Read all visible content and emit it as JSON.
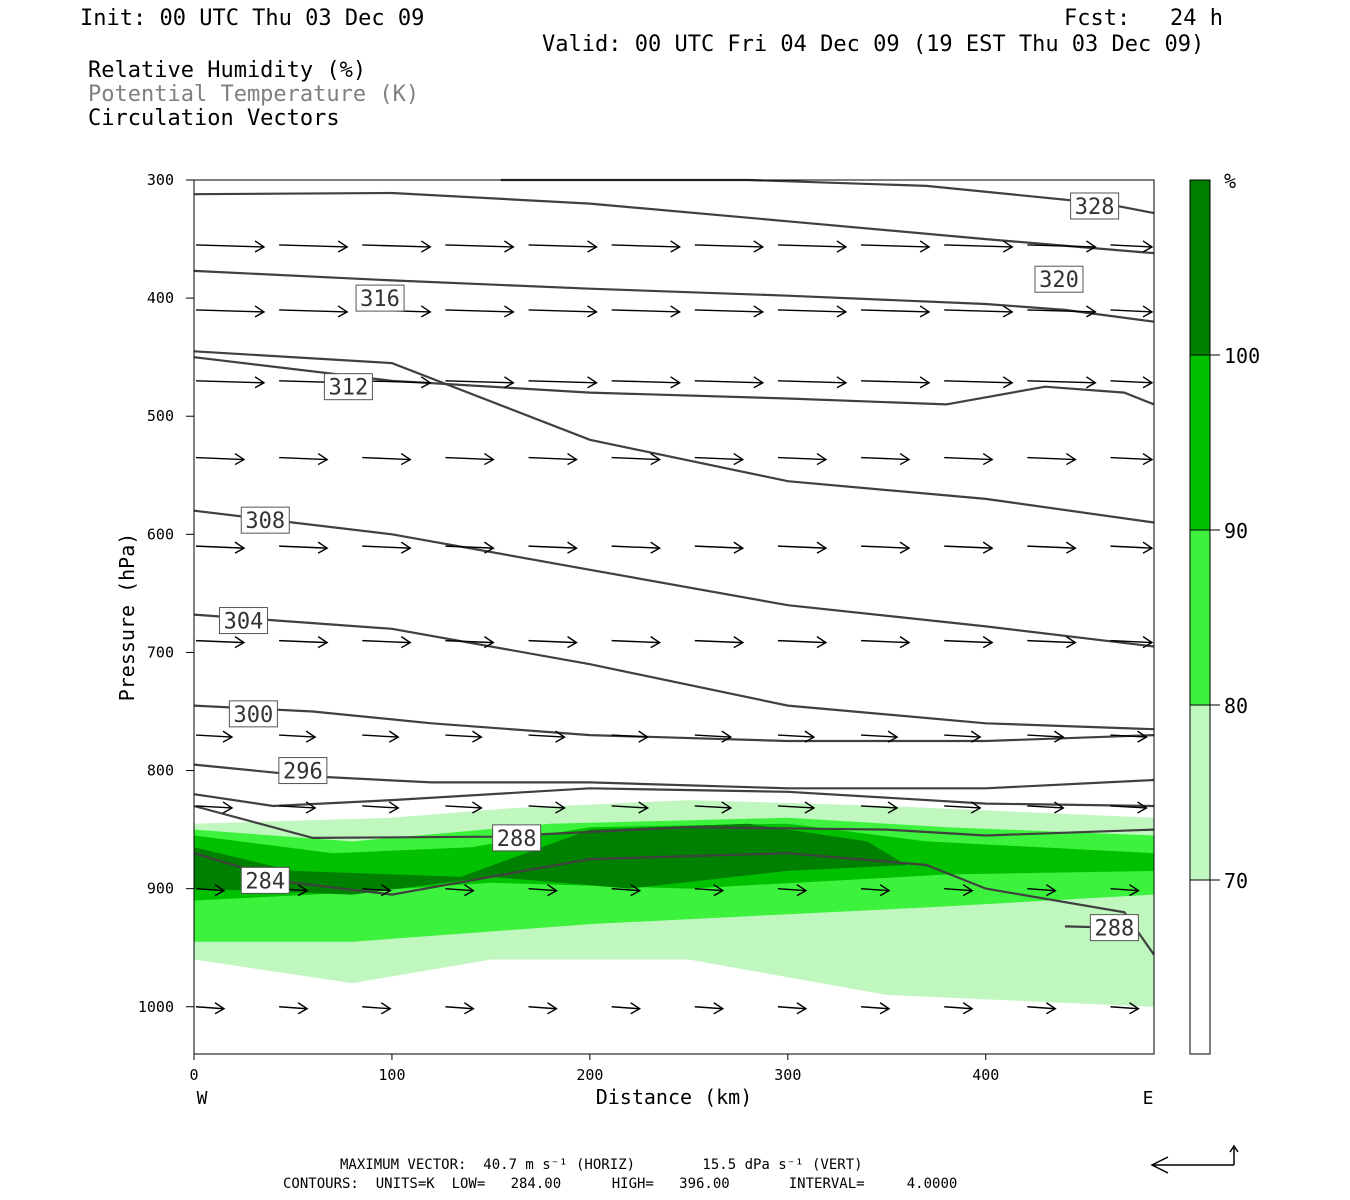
{
  "header": {
    "init": "Init: 00 UTC Thu 03 Dec 09",
    "fcst": "Fcst:   24 h",
    "valid": "Valid: 00 UTC Fri 04 Dec 09 (19 EST Thu 03 Dec 09)",
    "fields": [
      "Relative Humidity (%)",
      "Potential Temperature (K)",
      "Circulation Vectors"
    ]
  },
  "colors": {
    "rh_70_80": "#bff7bf",
    "rh_80_90": "#3cf23c",
    "rh_90_100": "#00c000",
    "rh_100": "#008000",
    "theta_line": "#404040",
    "field_gray": "#808080"
  },
  "chart_data": {
    "type": "cross-section",
    "xlabel": "Distance (km)",
    "ylabel": "Pressure (hPa)",
    "xlim": [
      0,
      485
    ],
    "ylim": [
      1040,
      300
    ],
    "x_ticks": [
      "0",
      "100",
      "200",
      "300",
      "400"
    ],
    "y_ticks": [
      "300",
      "400",
      "500",
      "600",
      "700",
      "800",
      "900",
      "1000"
    ],
    "west_label": "W",
    "east_label": "E",
    "colorbar": {
      "unit": "%",
      "levels": [
        "100",
        "90",
        "80",
        "70"
      ]
    },
    "theta_contours": [
      {
        "value": 328,
        "label": "328",
        "label_at": [
          455,
          322
        ],
        "points": [
          [
            155,
            300
          ],
          [
            280,
            300
          ],
          [
            370,
            305
          ],
          [
            460,
            320
          ],
          [
            485,
            328
          ]
        ]
      },
      {
        "value": 324,
        "label": "",
        "points": [
          [
            0,
            312
          ],
          [
            100,
            311
          ],
          [
            200,
            320
          ],
          [
            300,
            335
          ],
          [
            400,
            350
          ],
          [
            485,
            362
          ]
        ]
      },
      {
        "value": 320,
        "label": "320",
        "label_at": [
          437,
          384
        ],
        "points": [
          [
            0,
            377
          ],
          [
            100,
            385
          ],
          [
            200,
            392
          ],
          [
            300,
            398
          ],
          [
            400,
            405
          ],
          [
            440,
            410
          ],
          [
            485,
            420
          ]
        ]
      },
      {
        "value": 316,
        "label": "316",
        "label_at": [
          94,
          400
        ],
        "points": [
          [
            0,
            450
          ],
          [
            100,
            470
          ],
          [
            200,
            480
          ],
          [
            300,
            485
          ],
          [
            380,
            490
          ],
          [
            430,
            475
          ],
          [
            470,
            480
          ],
          [
            485,
            490
          ]
        ]
      },
      {
        "value": 312,
        "label": "312",
        "label_at": [
          78,
          475
        ],
        "points": [
          [
            0,
            445
          ],
          [
            100,
            455
          ],
          [
            200,
            520
          ],
          [
            300,
            555
          ],
          [
            400,
            570
          ],
          [
            485,
            590
          ]
        ]
      },
      {
        "value": 308,
        "label": "308",
        "label_at": [
          36,
          588
        ],
        "points": [
          [
            0,
            580
          ],
          [
            100,
            600
          ],
          [
            200,
            630
          ],
          [
            300,
            660
          ],
          [
            400,
            678
          ],
          [
            485,
            695
          ]
        ]
      },
      {
        "value": 304,
        "label": "304",
        "label_at": [
          25,
          673
        ],
        "points": [
          [
            0,
            668
          ],
          [
            100,
            680
          ],
          [
            200,
            710
          ],
          [
            300,
            745
          ],
          [
            400,
            760
          ],
          [
            485,
            765
          ]
        ]
      },
      {
        "value": 300,
        "label": "300",
        "label_at": [
          30,
          752
        ],
        "points": [
          [
            0,
            745
          ],
          [
            60,
            750
          ],
          [
            120,
            760
          ],
          [
            200,
            770
          ],
          [
            300,
            775
          ],
          [
            400,
            775
          ],
          [
            485,
            770
          ]
        ]
      },
      {
        "value": 296,
        "label": "296",
        "label_at": [
          55,
          800
        ],
        "points": [
          [
            0,
            795
          ],
          [
            60,
            805
          ],
          [
            120,
            810
          ],
          [
            200,
            810
          ],
          [
            300,
            815
          ],
          [
            400,
            815
          ],
          [
            485,
            808
          ]
        ]
      },
      {
        "value": 292,
        "label": "",
        "points": [
          [
            0,
            820
          ],
          [
            40,
            830
          ],
          [
            100,
            825
          ],
          [
            200,
            815
          ],
          [
            300,
            818
          ],
          [
            400,
            828
          ],
          [
            485,
            830
          ]
        ]
      },
      {
        "value": 288,
        "label": "288",
        "label_at": [
          163,
          857
        ],
        "points": [
          [
            0,
            830
          ],
          [
            60,
            857
          ],
          [
            150,
            856
          ],
          [
            250,
            848
          ],
          [
            350,
            850
          ],
          [
            400,
            855
          ],
          [
            485,
            850
          ]
        ]
      },
      {
        "value": 284,
        "label": "284",
        "label_at": [
          36,
          893
        ],
        "points": [
          [
            0,
            870
          ],
          [
            50,
            895
          ],
          [
            100,
            905
          ],
          [
            200,
            875
          ],
          [
            300,
            870
          ],
          [
            370,
            880
          ],
          [
            400,
            900
          ],
          [
            470,
            920
          ],
          [
            485,
            956
          ]
        ]
      },
      {
        "value": 288,
        "label": "288",
        "label_at": [
          465,
          933
        ],
        "points": [
          [
            440,
            932
          ],
          [
            465,
            933
          ]
        ]
      }
    ],
    "rh_regions": [
      {
        "class": "70-80",
        "points": [
          [
            0,
            845
          ],
          [
            100,
            840
          ],
          [
            160,
            832
          ],
          [
            250,
            825
          ],
          [
            350,
            830
          ],
          [
            485,
            840
          ],
          [
            485,
            1000
          ],
          [
            350,
            990
          ],
          [
            250,
            960
          ],
          [
            150,
            960
          ],
          [
            80,
            980
          ],
          [
            0,
            960
          ]
        ]
      },
      {
        "class": "80-90",
        "points": [
          [
            0,
            850
          ],
          [
            80,
            860
          ],
          [
            180,
            845
          ],
          [
            300,
            840
          ],
          [
            380,
            848
          ],
          [
            485,
            855
          ],
          [
            485,
            905
          ],
          [
            380,
            915
          ],
          [
            200,
            930
          ],
          [
            80,
            945
          ],
          [
            0,
            945
          ]
        ]
      },
      {
        "class": "90-100",
        "points": [
          [
            0,
            855
          ],
          [
            70,
            870
          ],
          [
            140,
            865
          ],
          [
            200,
            848
          ],
          [
            300,
            845
          ],
          [
            370,
            860
          ],
          [
            485,
            870
          ],
          [
            485,
            885
          ],
          [
            380,
            888
          ],
          [
            250,
            900
          ],
          [
            150,
            895
          ],
          [
            60,
            905
          ],
          [
            0,
            910
          ]
        ]
      },
      {
        "class": "100",
        "points": [
          [
            0,
            865
          ],
          [
            50,
            885
          ],
          [
            135,
            890
          ],
          [
            200,
            850
          ],
          [
            280,
            845
          ],
          [
            340,
            860
          ],
          [
            360,
            880
          ],
          [
            300,
            885
          ],
          [
            220,
            900
          ],
          [
            150,
            890
          ],
          [
            80,
            905
          ],
          [
            0,
            900
          ]
        ]
      }
    ],
    "vector_rows_hpa": [
      355,
      410,
      470,
      535,
      610,
      690,
      770,
      830,
      900,
      1000
    ],
    "vector_spacing_km": 42
  },
  "footer": {
    "max_vector": "MAXIMUM VECTOR:  40.7 m s⁻¹ (HORIZ)        15.5 dPa s⁻¹ (VERT)",
    "contours": "CONTOURS:  UNITS=K  LOW=   284.00      HIGH=   396.00       INTERVAL=     4.0000"
  }
}
